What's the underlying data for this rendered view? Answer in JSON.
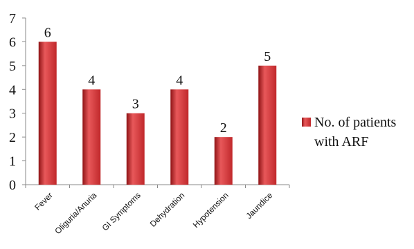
{
  "chart_data": {
    "type": "bar",
    "categories": [
      "Fever",
      "Oliguria/Anuria",
      "GI Symptoms",
      "Dehydration",
      "Hypotension",
      "Jaundice"
    ],
    "series": [
      {
        "name": "No. of patients with ARF",
        "values": [
          6,
          4,
          3,
          4,
          2,
          5
        ]
      }
    ],
    "ylim": [
      0,
      7
    ],
    "yticks": [
      "0",
      "1",
      "2",
      "3",
      "4",
      "5",
      "6",
      "7"
    ],
    "data_labels": [
      "6",
      "4",
      "3",
      "4",
      "2",
      "5"
    ],
    "legend": {
      "lines": [
        "No. of patients",
        "with ARF"
      ],
      "position": "right"
    },
    "bar_color": "#c0282b",
    "bar_highlight": "#e8585a",
    "bar_shadow": "#8f1416",
    "axis_color": "#8a8a8a",
    "grid": false
  }
}
